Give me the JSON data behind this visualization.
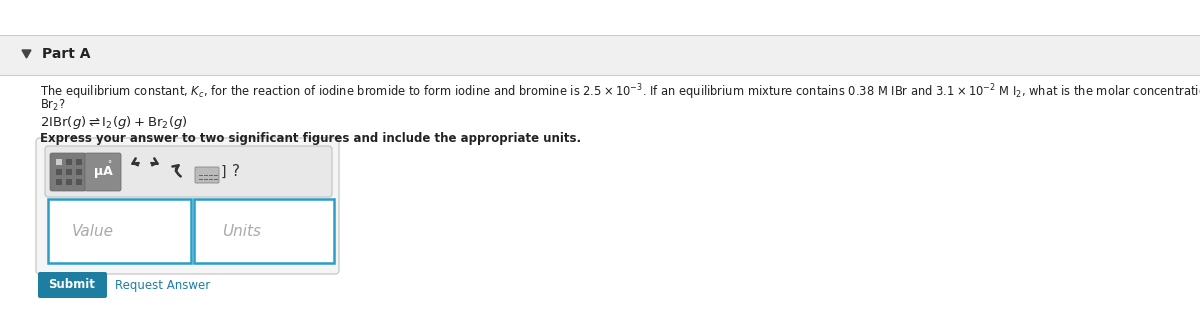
{
  "white_bg": "#ffffff",
  "header_bg": "#f0f0f0",
  "header_text": "Part A",
  "triangle_color": "#444444",
  "body_text_line1": "The equilibrium constant, $K_c$, for the reaction of iodine bromide to form iodine and bromine is $2.5 \\times 10^{-3}$. If an equilibrium mixture contains 0.38 M IBr and $3.1 \\times 10^{-2}$ M I$_2$, what is the molar concentration of",
  "body_text_line2": "Br$_2$?",
  "equation": "$2\\mathrm{IBr}(g) \\rightleftharpoons \\mathrm{I_2}(g) + \\mathrm{Br_2}(g)$",
  "bold_instruction": "Express your answer to two significant figures and include the appropriate units.",
  "value_placeholder": "Value",
  "units_placeholder": "Units",
  "submit_btn_color": "#1e7ea1",
  "submit_text": "Submit",
  "request_answer_text": "Request Answer",
  "request_answer_color": "#1e7ea1",
  "toolbar_bg": "#e8e8e8",
  "icon_btn_bg": "#7a7a7a",
  "icon_btn_bg2": "#8a8a8a",
  "input_border_color": "#2a9dc8",
  "input_bg": "#ffffff",
  "outer_box_bg": "#f5f5f5",
  "outer_box_border": "#cccccc",
  "text_color": "#222222",
  "placeholder_color": "#aaaaaa",
  "separator_color": "#dddddd",
  "header_border": "#cccccc"
}
